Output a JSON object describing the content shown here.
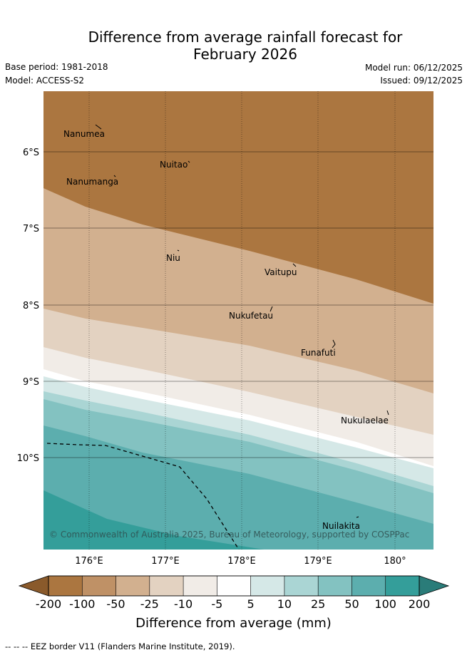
{
  "title": {
    "line1": "Difference from average rainfall forecast for",
    "line2": "February 2026"
  },
  "meta": {
    "base_period": "Base period: 1981-2018",
    "model": "Model: ACCESS-S2",
    "model_run": "Model run: 06/12/2025",
    "issued": "Issued: 09/12/2025"
  },
  "map": {
    "lat_ticks": [
      "6°S",
      "7°S",
      "8°S",
      "9°S",
      "10°S"
    ],
    "lon_ticks": [
      "176°E",
      "177°E",
      "178°E",
      "179°E",
      "180°"
    ],
    "islands": [
      "Nanumea",
      "Nuitao",
      "Nanumanga",
      "Niu",
      "Vaitupu",
      "Nukufetau",
      "Funafuti",
      "Nukulaelae",
      "Nuilakita"
    ],
    "copyright": "© Commonwealth of Australia 2025, Bureau of Meteorology, supported by COSPPac"
  },
  "colorbar": {
    "colors": [
      "#ab7640",
      "#bf9166",
      "#d2b08f",
      "#e3d2c1",
      "#f1ece7",
      "#ffffff",
      "#d5e8e7",
      "#aad5d4",
      "#83c2c1",
      "#5caeae",
      "#349e9a"
    ],
    "low_arrow_color": "#8a5a2b",
    "high_arrow_color": "#2a7c79",
    "tick_labels": [
      "-200",
      "-100",
      "-50",
      "-25",
      "-10",
      "-5",
      "5",
      "10",
      "25",
      "50",
      "100",
      "200"
    ],
    "title": "Difference from average (mm)"
  },
  "footnote": "--  --  -- EEZ border V11 (Flanders Marine Institute, 2019)."
}
